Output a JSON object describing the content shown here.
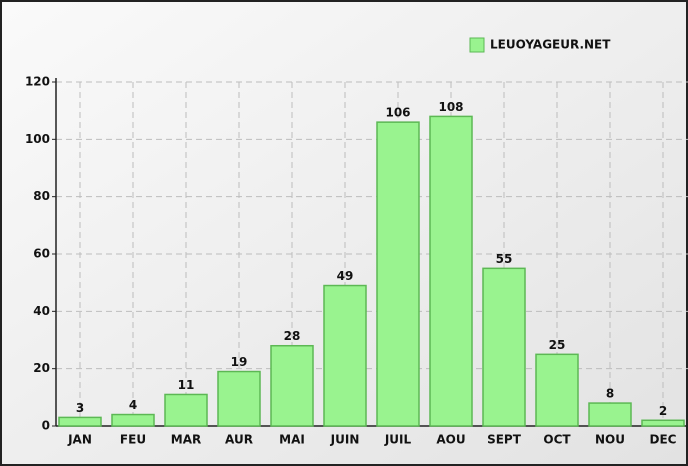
{
  "chart_data": {
    "type": "bar",
    "categories": [
      "JAN",
      "FEU",
      "MAR",
      "AUR",
      "MAI",
      "JUIN",
      "JUIL",
      "AOU",
      "SEPT",
      "OCT",
      "NOU",
      "DEC"
    ],
    "series": [
      {
        "name": "LEUOYAGEUR.NET",
        "color": "#99f38f",
        "values": [
          3,
          4,
          11,
          19,
          28,
          49,
          106,
          108,
          55,
          25,
          8,
          2
        ]
      }
    ],
    "ylim": [
      0,
      120
    ],
    "yticks": [
      0,
      20,
      40,
      60,
      80,
      100,
      120
    ],
    "grid": true,
    "legend": "top-right"
  }
}
